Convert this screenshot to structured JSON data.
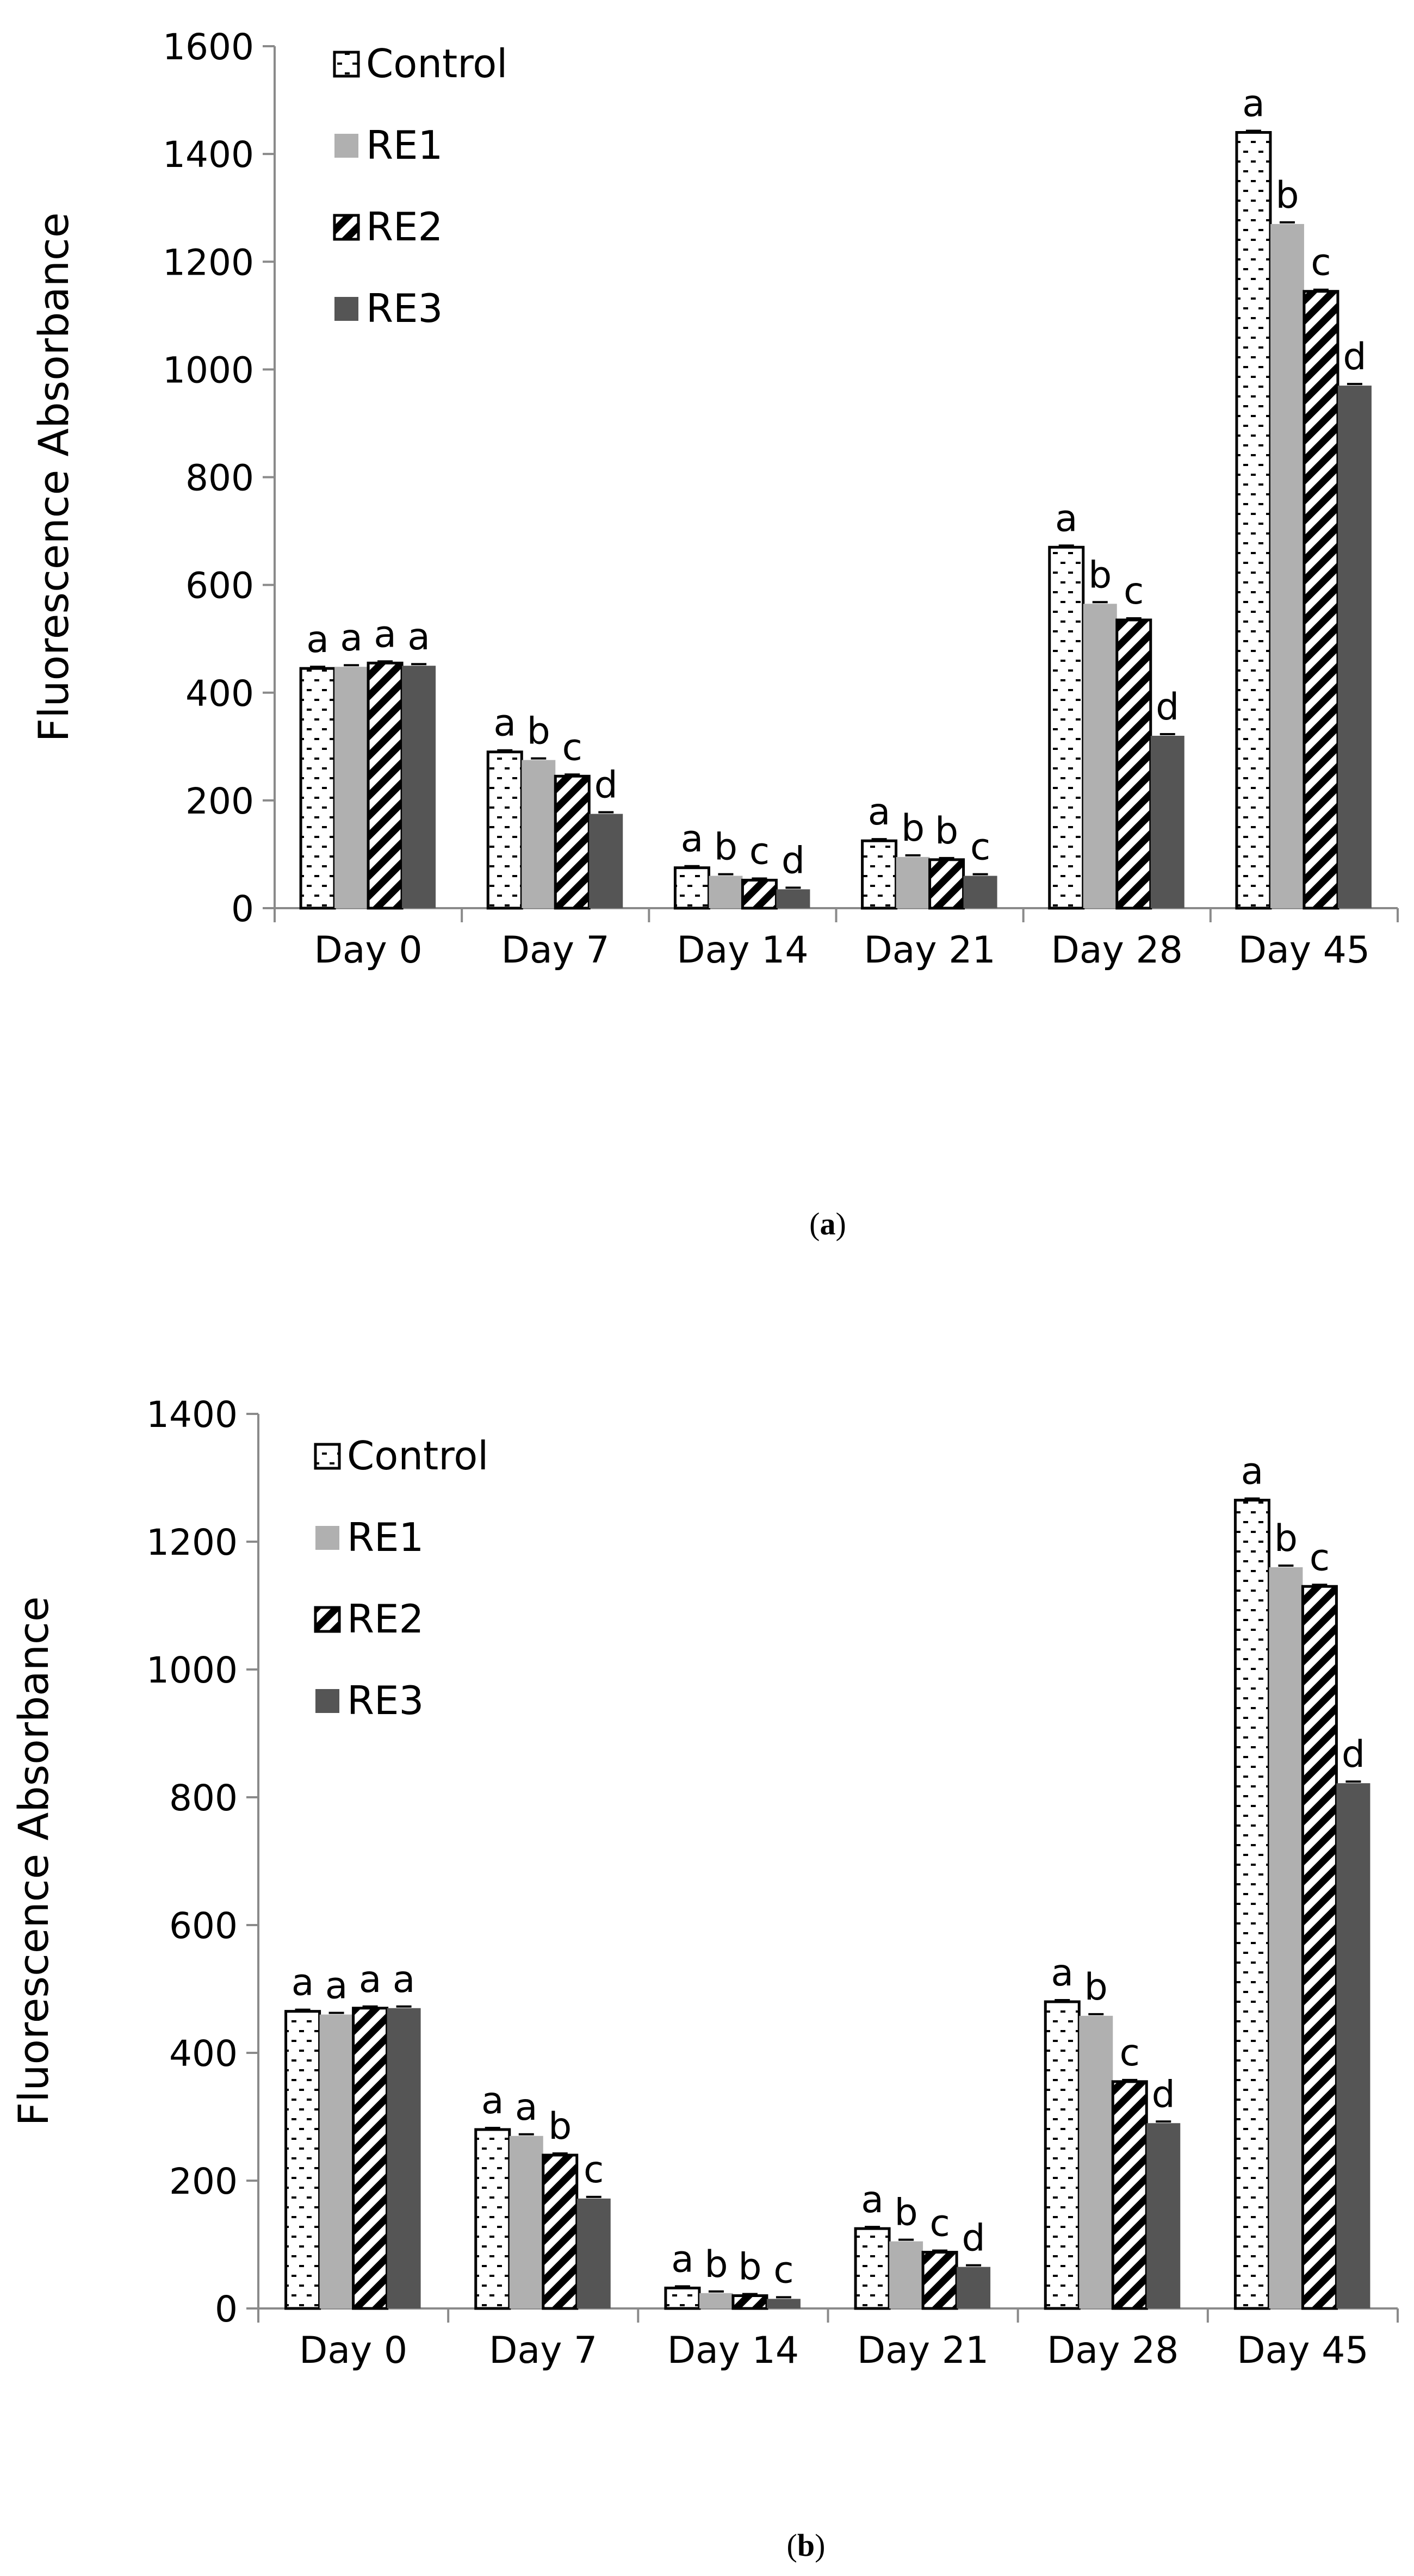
{
  "colors": {
    "control_fill": "#ffffff",
    "control_dash": "#000000",
    "re1_fill": "#b0b0b0",
    "re2_stripe": "#000000",
    "re3_fill": "#555555",
    "axis": "#8a8a8a"
  },
  "chart_data": [
    {
      "id": "a",
      "type": "bar",
      "panel_label": "(a)",
      "panel_letter": "a",
      "ylabel": "Fluorescence Absorbance",
      "xlabel": "",
      "ylim": [
        0,
        1600
      ],
      "yticks": [
        0,
        200,
        400,
        600,
        800,
        1000,
        1200,
        1400,
        1600
      ],
      "legend_position": "top-left",
      "categories": [
        "Day 0",
        "Day 7",
        "Day 14",
        "Day 21",
        "Day 28",
        "Day 45"
      ],
      "series": [
        {
          "name": "Control",
          "values": [
            445,
            290,
            75,
            125,
            670,
            1440
          ],
          "labels": [
            "a",
            "a",
            "a",
            "a",
            "a",
            "a"
          ]
        },
        {
          "name": "RE1",
          "values": [
            448,
            275,
            60,
            95,
            565,
            1270
          ],
          "labels": [
            "a",
            "b",
            "b",
            "b",
            "b",
            "b"
          ]
        },
        {
          "name": "RE2",
          "values": [
            455,
            245,
            52,
            90,
            535,
            1145
          ],
          "labels": [
            "a",
            "c",
            "c",
            "b",
            "c",
            "c"
          ]
        },
        {
          "name": "RE3",
          "values": [
            450,
            175,
            35,
            60,
            320,
            970
          ],
          "labels": [
            "a",
            "d",
            "d",
            "c",
            "d",
            "d"
          ]
        }
      ]
    },
    {
      "id": "b",
      "type": "bar",
      "panel_label": "(b)",
      "panel_letter": "b",
      "ylabel": "Fluorescence Absorbance",
      "xlabel": "",
      "ylim": [
        0,
        1400
      ],
      "yticks": [
        0,
        200,
        400,
        600,
        800,
        1000,
        1200,
        1400
      ],
      "legend_position": "top-left",
      "categories": [
        "Day 0",
        "Day 7",
        "Day 14",
        "Day 21",
        "Day 28",
        "Day 45"
      ],
      "series": [
        {
          "name": "Control",
          "values": [
            465,
            280,
            32,
            125,
            480,
            1265
          ],
          "labels": [
            "a",
            "a",
            "a",
            "a",
            "a",
            "a"
          ]
        },
        {
          "name": "RE1",
          "values": [
            460,
            270,
            24,
            105,
            458,
            1160
          ],
          "labels": [
            "a",
            "a",
            "b",
            "b",
            "b",
            "b"
          ]
        },
        {
          "name": "RE2",
          "values": [
            470,
            240,
            20,
            88,
            355,
            1130
          ],
          "labels": [
            "a",
            "b",
            "b",
            "c",
            "c",
            "c"
          ]
        },
        {
          "name": "RE3",
          "values": [
            470,
            172,
            15,
            65,
            290,
            822
          ],
          "labels": [
            "a",
            "c",
            "c",
            "d",
            "d",
            "d"
          ]
        }
      ]
    }
  ]
}
